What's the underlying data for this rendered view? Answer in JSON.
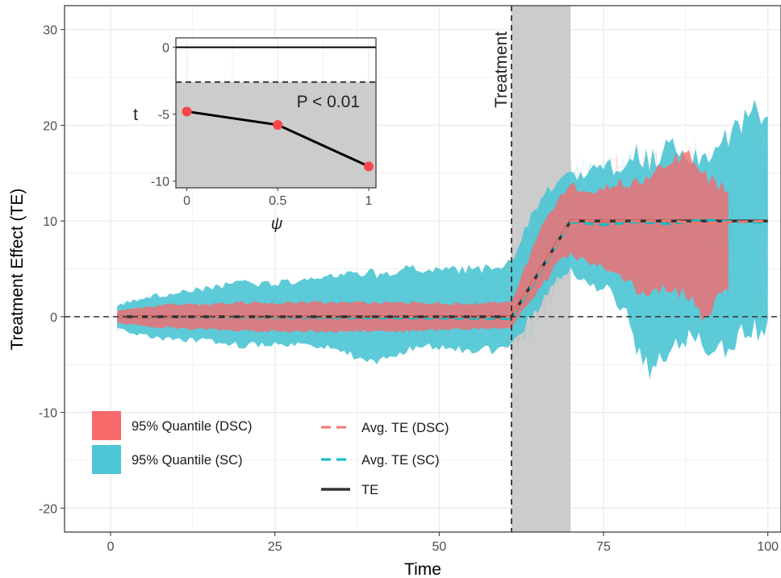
{
  "chart_data": {
    "type": "line",
    "xlabel": "Time",
    "ylabel": "Treatment Effect (TE)",
    "xlim": [
      -7,
      102
    ],
    "ylim": [
      -22.5,
      32.5
    ],
    "x_ticks": [
      "0",
      "25",
      "50",
      "75",
      "100"
    ],
    "y_ticks": [
      "-20",
      "-10",
      "0",
      "10",
      "20",
      "30"
    ],
    "grid": true,
    "reference_line_y": 0,
    "treatment": {
      "label": "Treatment",
      "x": 61,
      "shaded_range": [
        61,
        70
      ]
    },
    "series": [
      {
        "name": "95% Quantile (SC)",
        "kind": "band",
        "color": "#4fc6d5",
        "x": [
          1,
          5,
          10,
          15,
          20,
          25,
          30,
          35,
          40,
          45,
          50,
          55,
          58,
          60,
          61,
          63,
          66,
          68,
          70,
          72,
          75,
          78,
          80,
          82,
          85,
          88,
          90,
          92,
          94,
          96,
          98,
          100
        ],
        "lower": [
          -1.2,
          -2,
          -2.5,
          -2.5,
          -3,
          -3,
          -3,
          -3.5,
          -5,
          -3.5,
          -3,
          -3.5,
          -3.5,
          -3.5,
          -3.2,
          -1,
          2,
          4,
          5,
          4,
          3,
          1,
          -3,
          -6,
          -4,
          -2,
          -3,
          -4,
          -3,
          -2,
          -1.5,
          -1.3
        ],
        "upper": [
          1.2,
          2,
          2.5,
          3,
          3.5,
          3.5,
          4,
          4.5,
          4.5,
          5,
          5,
          5,
          5,
          5.5,
          6,
          9,
          13,
          14,
          15,
          14.5,
          16,
          15,
          17,
          16,
          18,
          17,
          16,
          18,
          19,
          20,
          21.5,
          20
        ]
      },
      {
        "name": "95% Quantile (DSC)",
        "kind": "band",
        "color": "#f8696b",
        "x": [
          1,
          5,
          10,
          15,
          20,
          25,
          30,
          35,
          40,
          45,
          50,
          55,
          58,
          60,
          61,
          63,
          66,
          68,
          70,
          72,
          75,
          78,
          80,
          82,
          85,
          88,
          90,
          91,
          92,
          94
        ],
        "lower": [
          -0.6,
          -1,
          -1.2,
          -1.3,
          -1.5,
          -1.5,
          -1.5,
          -1.5,
          -1.5,
          -1.5,
          -1.4,
          -1.3,
          -1.2,
          -1.2,
          -1.2,
          1,
          3.5,
          5.5,
          6.5,
          6,
          5,
          4,
          3,
          2,
          3,
          2,
          -0.5,
          0.5,
          2,
          3
        ],
        "upper": [
          0.6,
          1,
          1.3,
          1.3,
          1.5,
          1.5,
          1.5,
          1.5,
          1.5,
          1.5,
          1.4,
          1.3,
          1.5,
          1.5,
          1.5,
          5,
          10,
          12,
          14,
          13,
          13.5,
          14,
          14,
          15,
          16,
          17.5,
          15,
          14.5,
          14,
          13
        ]
      },
      {
        "name": "Avg. TE (DSC)",
        "kind": "line",
        "color": "#f8766d",
        "dash": "12 7",
        "x": [
          1,
          61,
          70,
          85,
          90,
          100
        ],
        "y": [
          0,
          0,
          10,
          10,
          9.8,
          10
        ]
      },
      {
        "name": "Avg. TE (SC)",
        "kind": "line",
        "color": "#00bfc4",
        "dash": "12 7",
        "x": [
          1,
          61,
          70,
          75,
          80,
          85,
          90,
          100
        ],
        "y": [
          0,
          -0.2,
          9.9,
          9.6,
          9.9,
          9.7,
          10.1,
          9.8
        ]
      },
      {
        "name": "TE",
        "kind": "line",
        "color": "#333333",
        "x": [
          1,
          61,
          70,
          100
        ],
        "y": [
          0,
          0,
          10,
          10
        ]
      }
    ],
    "inset": {
      "xlabel": "ψ",
      "ylabel": "t",
      "annotation": "P < 0.01",
      "xlim": [
        -0.06,
        1.04
      ],
      "ylim": [
        -10.5,
        0.7
      ],
      "x_ticks": [
        "0",
        "0.5",
        "1"
      ],
      "y_ticks": [
        "0",
        "-5",
        "-10"
      ],
      "threshold": -2.6,
      "x": [
        0,
        0.5,
        1
      ],
      "y": [
        -4.8,
        -5.8,
        -8.9
      ],
      "point_color": "#f8464a"
    }
  }
}
